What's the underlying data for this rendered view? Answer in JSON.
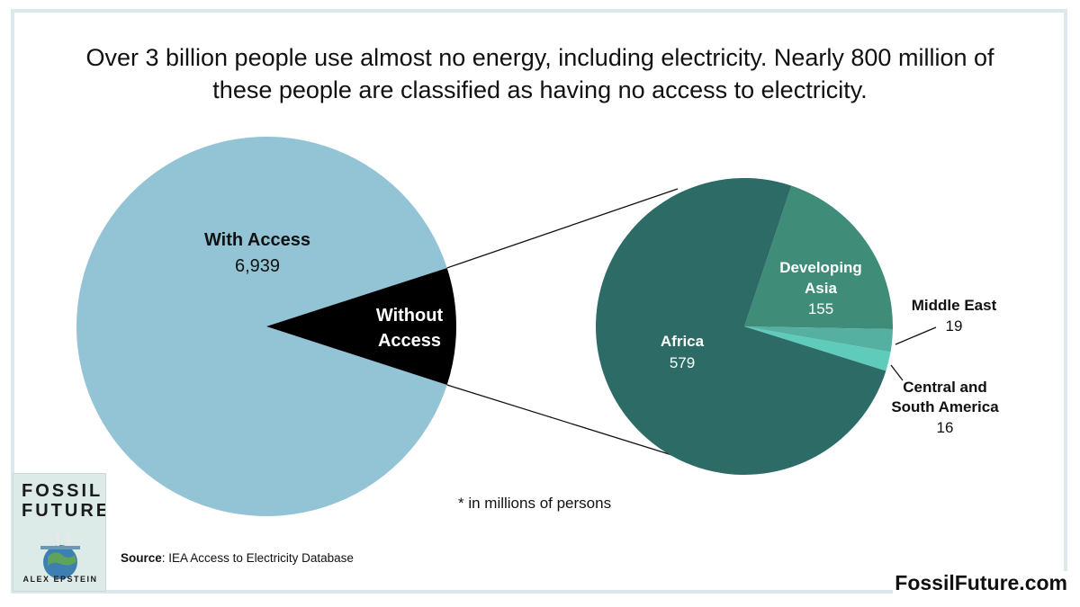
{
  "title_lines": [
    "Over 3 billion people use almost no energy, including electricity. Nearly 800 million of",
    "these people are classified as having no access to electricity."
  ],
  "chart_data": [
    {
      "type": "pie",
      "slices": [
        {
          "label": "With Access",
          "value": 6939,
          "display": "6,939",
          "color": "#92c4d6"
        },
        {
          "label": "Without Access",
          "value": 769,
          "display": "",
          "color": "#000000"
        }
      ]
    },
    {
      "type": "pie",
      "slices": [
        {
          "label": "Africa",
          "value": 579,
          "display": "579",
          "color": "#2d6b66"
        },
        {
          "label": "Developing Asia",
          "value": 155,
          "display": "155",
          "color": "#3f8c79"
        },
        {
          "label": "Middle East",
          "value": 19,
          "display": "19",
          "color": "#56b0a2"
        },
        {
          "label": "Central and South America",
          "value": 16,
          "display": "16",
          "color": "#5ecbbb"
        }
      ]
    }
  ],
  "labels": {
    "with_access": {
      "name": "With Access",
      "value": "6,939"
    },
    "without_access": [
      "Without",
      "Access"
    ],
    "africa": {
      "name": "Africa",
      "value": "579"
    },
    "developing_asia": {
      "lines": [
        "Developing",
        "Asia"
      ],
      "value": "155"
    },
    "middle_east": {
      "name": "Middle East",
      "value": "19"
    },
    "csa": {
      "lines": [
        "Central and",
        "South America"
      ],
      "value": "16"
    }
  },
  "footnote": "* in millions of persons",
  "source": {
    "label": "Source",
    "text": ": IEA Access to Electricity Database"
  },
  "site": "FossilFuture.com",
  "book": {
    "line1": "FOSSIL",
    "line2": "FUTURE",
    "author": "ALEX EPSTEIN"
  },
  "colors": {
    "frame": "#dbe9ec",
    "with_access": "#92c4d6",
    "without_access": "#000000"
  }
}
